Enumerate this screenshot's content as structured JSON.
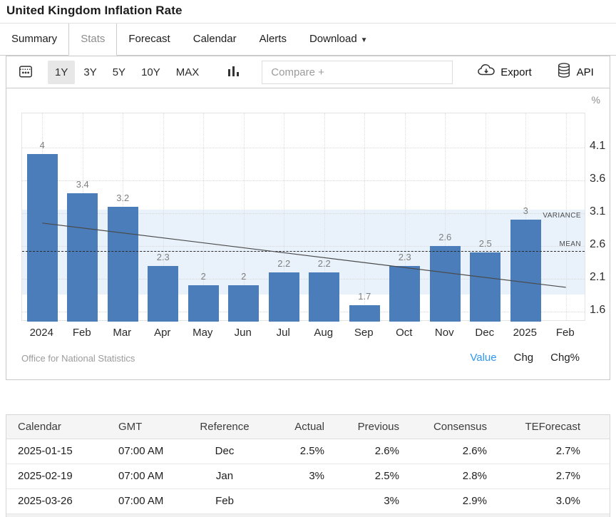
{
  "header": {
    "title": "United Kingdom Inflation Rate"
  },
  "tabs": [
    {
      "label": "Summary",
      "active": false,
      "caret": false
    },
    {
      "label": "Stats",
      "active": true,
      "caret": false
    },
    {
      "label": "Forecast",
      "active": false,
      "caret": false
    },
    {
      "label": "Calendar",
      "active": false,
      "caret": false
    },
    {
      "label": "Alerts",
      "active": false,
      "caret": false
    },
    {
      "label": "Download",
      "active": false,
      "caret": true
    }
  ],
  "toolbar": {
    "ranges": [
      "1Y",
      "3Y",
      "5Y",
      "10Y",
      "MAX"
    ],
    "active_range": "1Y",
    "compare_placeholder": "Compare +",
    "export_label": "Export",
    "api_label": "API"
  },
  "chart_data": {
    "type": "bar",
    "title": "United Kingdom Inflation Rate",
    "categories": [
      "2024",
      "Feb",
      "Mar",
      "Apr",
      "May",
      "Jun",
      "Jul",
      "Aug",
      "Sep",
      "Oct",
      "Nov",
      "Dec",
      "2025",
      "Feb"
    ],
    "values": [
      4,
      3.4,
      3.2,
      2.3,
      2,
      2,
      2.2,
      2.2,
      1.7,
      2.3,
      2.6,
      2.5,
      3,
      null
    ],
    "bar_value_labels": [
      "4",
      "3.4",
      "3.2",
      "2.3",
      "2",
      "2",
      "2.2",
      "2.2",
      "1.7",
      "2.3",
      "2.6",
      "2.5",
      "3",
      ""
    ],
    "unit": "%",
    "ylabel": "%",
    "xlabel": "",
    "y_ticks": [
      4.1,
      3.6,
      3.1,
      2.6,
      2.1,
      1.6
    ],
    "ylim": [
      1.448,
      4.622
    ],
    "grid": true,
    "mean": 2.52,
    "mean_label": "MEAN",
    "variance_band": [
      1.86,
      3.15
    ],
    "variance_label": "VARIANCE",
    "trend_line": {
      "start_index": 0,
      "start_value": 2.95,
      "end_index": 13,
      "end_value": 1.97
    },
    "bar_color": "#4a7dba",
    "band_color": "#e9f2fb",
    "source": "Office for National Statistics",
    "series_toggles": [
      "Value",
      "Chg",
      "Chg%"
    ],
    "active_toggle": "Value"
  },
  "table": {
    "headers": [
      "Calendar",
      "GMT",
      "Reference",
      "Actual",
      "Previous",
      "Consensus",
      "TEForecast"
    ],
    "rows": [
      [
        "2025-01-15",
        "07:00 AM",
        "Dec",
        "2.5%",
        "2.6%",
        "2.6%",
        "2.7%"
      ],
      [
        "2025-02-19",
        "07:00 AM",
        "Jan",
        "3%",
        "2.5%",
        "2.8%",
        "2.7%"
      ],
      [
        "2025-03-26",
        "07:00 AM",
        "Feb",
        "",
        "3%",
        "2.9%",
        "3.0%"
      ]
    ]
  }
}
